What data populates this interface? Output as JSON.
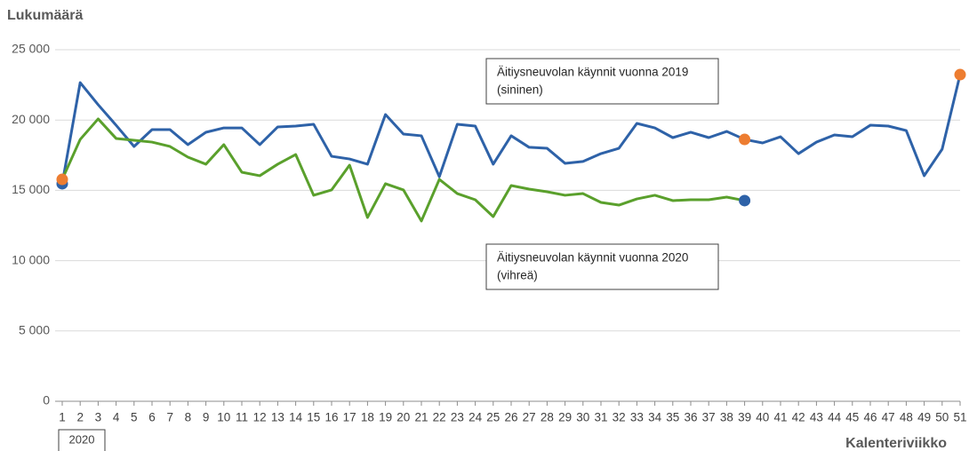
{
  "chart_data": {
    "type": "line",
    "y_axis_label": "Lukumäärä",
    "x_axis_label": "Kalenteriviikko",
    "x_group_label": "2020",
    "x": [
      1,
      2,
      3,
      4,
      5,
      6,
      7,
      8,
      9,
      10,
      11,
      12,
      13,
      14,
      15,
      16,
      17,
      18,
      19,
      20,
      21,
      22,
      23,
      24,
      25,
      26,
      27,
      28,
      29,
      30,
      31,
      32,
      33,
      34,
      35,
      36,
      37,
      38,
      39,
      40,
      41,
      42,
      43,
      44,
      45,
      46,
      47,
      48,
      49,
      50,
      51
    ],
    "xlim": [
      1,
      51
    ],
    "ylim": [
      0,
      25000
    ],
    "yticks": [
      0,
      {
        "value": 5000,
        "label": "5 000"
      },
      {
        "value": 10000,
        "label": "10 000"
      },
      {
        "value": 15000,
        "label": "15 000"
      },
      {
        "value": 20000,
        "label": "20 000"
      },
      {
        "value": 25000,
        "label": "25 000"
      }
    ],
    "grid": true,
    "series": [
      {
        "color": "#2e62a8",
        "values": [
          15470,
          22660,
          21090,
          19630,
          18120,
          19320,
          19320,
          18250,
          19130,
          19440,
          19440,
          18250,
          19510,
          19570,
          19700,
          17420,
          17230,
          16860,
          20390,
          19000,
          18880,
          15970,
          19700,
          19570,
          16860,
          18880,
          18060,
          17990,
          16920,
          17050,
          17610,
          17990,
          19760,
          19440,
          18750,
          19130,
          18750,
          19190,
          18620,
          18370,
          18810,
          17610,
          18430,
          18940,
          18810,
          19630,
          19570,
          19250,
          16040,
          17930,
          23230
        ]
      },
      {
        "color": "#5aa02c",
        "values": [
          15780,
          18620,
          20080,
          18690,
          18560,
          18430,
          18120,
          17360,
          16860,
          18250,
          16290,
          16040,
          16860,
          17550,
          14650,
          15030,
          16790,
          13070,
          15470,
          15030,
          12820,
          15780,
          14770,
          14330,
          13130,
          15340,
          15090,
          14900,
          14650,
          14770,
          14140,
          13950,
          14390,
          14650,
          14270,
          14330,
          14330,
          14520,
          14270,
          null,
          null,
          null,
          null,
          null,
          null,
          null,
          null,
          null,
          null,
          null,
          null
        ]
      }
    ],
    "markers": [
      {
        "series": 0,
        "index": 0,
        "color": "#2e62a8"
      },
      {
        "series": 1,
        "index": 0,
        "color": "#ed7d31"
      },
      {
        "series": 0,
        "index": 38,
        "color": "#ed7d31"
      },
      {
        "series": 1,
        "index": 38,
        "color": "#2e62a8"
      },
      {
        "series": 0,
        "index": 50,
        "color": "#ed7d31"
      }
    ],
    "annotations": [
      {
        "lines": [
          "Äitiysneuvolan käynnit vuonna 2019",
          "(sininen)"
        ]
      },
      {
        "lines": [
          "Äitiysneuvolan käynnit vuonna 2020",
          "(vihreä)"
        ]
      }
    ]
  }
}
